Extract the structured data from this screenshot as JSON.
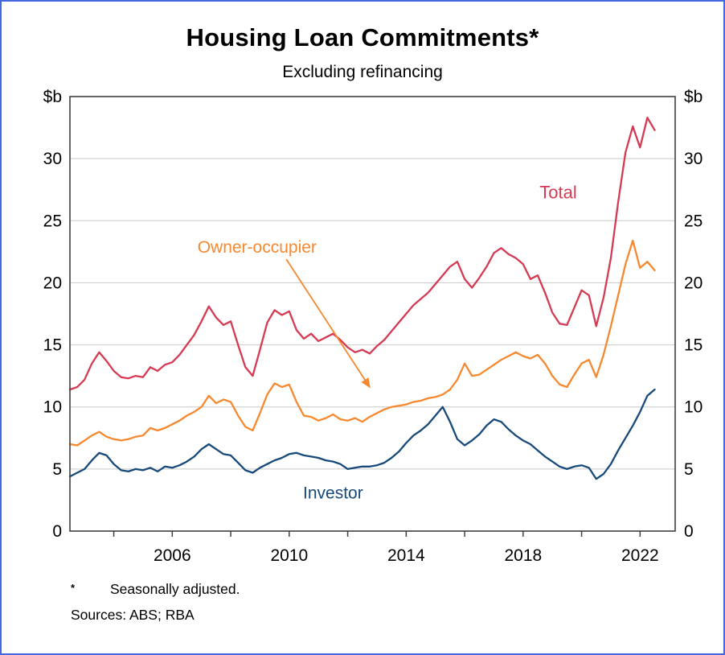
{
  "chart": {
    "title": "Housing Loan Commitments*",
    "subtitle": "Excluding refinancing",
    "footnote_marker": "*",
    "footnote_text": "Seasonally adjusted.",
    "sources_text": "Sources: ABS; RBA"
  },
  "chart_data": {
    "type": "line",
    "title": "Housing Loan Commitments*",
    "subtitle": "Excluding refinancing",
    "xlabel": "",
    "ylabel": "$b",
    "xlim": [
      2002.5,
      2023.2
    ],
    "ylim": [
      0,
      35
    ],
    "yticks": [
      0,
      5,
      10,
      15,
      20,
      25,
      30
    ],
    "xtick_labels": [
      2006,
      2010,
      2014,
      2018,
      2022
    ],
    "xticks_minor": [
      2004,
      2006,
      2008,
      2010,
      2012,
      2014,
      2016,
      2018,
      2020,
      2022
    ],
    "grid": "horizontal",
    "legend": "inline-annotations",
    "x": [
      2002.5,
      2002.75,
      2003,
      2003.25,
      2003.5,
      2003.75,
      2004,
      2004.25,
      2004.5,
      2004.75,
      2005,
      2005.25,
      2005.5,
      2005.75,
      2006,
      2006.25,
      2006.5,
      2006.75,
      2007,
      2007.25,
      2007.5,
      2007.75,
      2008,
      2008.25,
      2008.5,
      2008.75,
      2009,
      2009.25,
      2009.5,
      2009.75,
      2010,
      2010.25,
      2010.5,
      2010.75,
      2011,
      2011.25,
      2011.5,
      2011.75,
      2012,
      2012.25,
      2012.5,
      2012.75,
      2013,
      2013.25,
      2013.5,
      2013.75,
      2014,
      2014.25,
      2014.5,
      2014.75,
      2015,
      2015.25,
      2015.5,
      2015.75,
      2016,
      2016.25,
      2016.5,
      2016.75,
      2017,
      2017.25,
      2017.5,
      2017.75,
      2018,
      2018.25,
      2018.5,
      2018.75,
      2019,
      2019.25,
      2019.5,
      2019.75,
      2020,
      2020.25,
      2020.5,
      2020.75,
      2021,
      2021.25,
      2021.5,
      2021.75,
      2022,
      2022.25,
      2022.5
    ],
    "series": [
      {
        "name": "Total",
        "color": "#d53a53",
        "values": [
          11.4,
          11.6,
          12.2,
          13.5,
          14.4,
          13.7,
          12.9,
          12.4,
          12.3,
          12.5,
          12.4,
          13.2,
          12.9,
          13.4,
          13.6,
          14.2,
          15.0,
          15.8,
          16.9,
          18.1,
          17.2,
          16.6,
          16.9,
          15.0,
          13.2,
          12.5,
          14.6,
          16.8,
          17.8,
          17.4,
          17.7,
          16.2,
          15.5,
          15.9,
          15.3,
          15.6,
          15.9,
          15.4,
          14.8,
          14.4,
          14.6,
          14.3,
          14.9,
          15.4,
          16.1,
          16.8,
          17.5,
          18.2,
          18.7,
          19.2,
          19.9,
          20.6,
          21.3,
          21.7,
          20.3,
          19.6,
          20.4,
          21.3,
          22.4,
          22.8,
          22.3,
          22.0,
          21.5,
          20.3,
          20.6,
          19.2,
          17.6,
          16.7,
          16.6,
          18.0,
          19.4,
          19.0,
          16.5,
          18.8,
          22.0,
          26.5,
          30.5,
          32.6,
          30.9,
          33.3,
          32.3
        ]
      },
      {
        "name": "Owner-occupier",
        "color": "#f6882f",
        "values": [
          7.0,
          6.9,
          7.3,
          7.7,
          8.0,
          7.6,
          7.4,
          7.3,
          7.4,
          7.6,
          7.7,
          8.3,
          8.1,
          8.3,
          8.6,
          8.9,
          9.3,
          9.6,
          10.0,
          10.9,
          10.3,
          10.6,
          10.4,
          9.3,
          8.4,
          8.1,
          9.5,
          11.0,
          11.9,
          11.6,
          11.8,
          10.4,
          9.3,
          9.2,
          8.9,
          9.1,
          9.4,
          9.0,
          8.9,
          9.1,
          8.8,
          9.2,
          9.5,
          9.8,
          10.0,
          10.1,
          10.2,
          10.4,
          10.5,
          10.7,
          10.8,
          11.0,
          11.4,
          12.2,
          13.5,
          12.5,
          12.6,
          13.0,
          13.4,
          13.8,
          14.1,
          14.4,
          14.1,
          13.9,
          14.2,
          13.5,
          12.5,
          11.8,
          11.6,
          12.6,
          13.5,
          13.8,
          12.4,
          14.2,
          16.5,
          19.0,
          21.5,
          23.4,
          21.2,
          21.7,
          21.0
        ]
      },
      {
        "name": "Investor",
        "color": "#174a7a",
        "values": [
          4.4,
          4.7,
          5.0,
          5.7,
          6.3,
          6.1,
          5.4,
          4.9,
          4.8,
          5.0,
          4.9,
          5.1,
          4.8,
          5.2,
          5.1,
          5.3,
          5.6,
          6.0,
          6.6,
          7.0,
          6.6,
          6.2,
          6.1,
          5.5,
          4.9,
          4.7,
          5.1,
          5.4,
          5.7,
          5.9,
          6.2,
          6.3,
          6.1,
          6.0,
          5.9,
          5.7,
          5.6,
          5.4,
          5.0,
          5.1,
          5.2,
          5.2,
          5.3,
          5.5,
          5.9,
          6.4,
          7.1,
          7.7,
          8.1,
          8.6,
          9.3,
          10.0,
          8.8,
          7.4,
          6.9,
          7.3,
          7.8,
          8.5,
          9.0,
          8.8,
          8.2,
          7.7,
          7.3,
          7.0,
          6.5,
          6.0,
          5.6,
          5.2,
          5.0,
          5.2,
          5.3,
          5.1,
          4.2,
          4.6,
          5.4,
          6.5,
          7.5,
          8.5,
          9.6,
          10.9,
          11.4
        ]
      }
    ],
    "annotations": [
      {
        "text": "Total",
        "color": "#d53a53",
        "x": 2019.2,
        "y": 27.3,
        "font_size": 22
      },
      {
        "text": "Owner-occupier",
        "color": "#f6882f",
        "x": 2008.9,
        "y": 22.9,
        "font_size": 21,
        "arrow": {
          "x1": 2009.9,
          "y1": 21.9,
          "x2": 2012.75,
          "y2": 11.6
        }
      },
      {
        "text": "Investor",
        "color": "#174a7a",
        "x": 2011.5,
        "y": 3.1,
        "font_size": 21
      }
    ]
  }
}
